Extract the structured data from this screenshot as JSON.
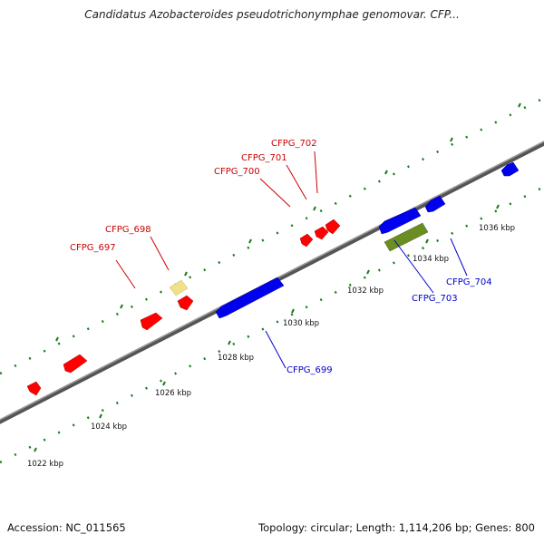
{
  "title": "Candidatus Azobacteroides pseudotrichonymphae genomovar. CFP...",
  "footer": {
    "accession": "Accession: NC_011565",
    "summary": "Topology: circular; Length: 1,114,206 bp; Genes: 800"
  },
  "scale_ticks": [
    "1022 kbp",
    "1024 kbp",
    "1026 kbp",
    "1028 kbp",
    "1030 kbp",
    "1032 kbp",
    "1034 kbp",
    "1036 kbp"
  ],
  "genes": {
    "CFPG_697": "CFPG_697",
    "CFPG_698": "CFPG_698",
    "CFPG_699": "CFPG_699",
    "CFPG_700": "CFPG_700",
    "CFPG_701": "CFPG_701",
    "CFPG_702": "CFPG_702",
    "CFPG_703": "CFPG_703",
    "CFPG_704": "CFPG_704"
  },
  "colors": {
    "forward_gene": "#ff0000",
    "reverse_gene": "#0000ee",
    "rna_gene": "#6b8e23",
    "pseudo_gene": "#f0e08c",
    "tick_green": "#1a7a1a",
    "label_red": "#cc0000",
    "label_blue": "#0000cc"
  }
}
